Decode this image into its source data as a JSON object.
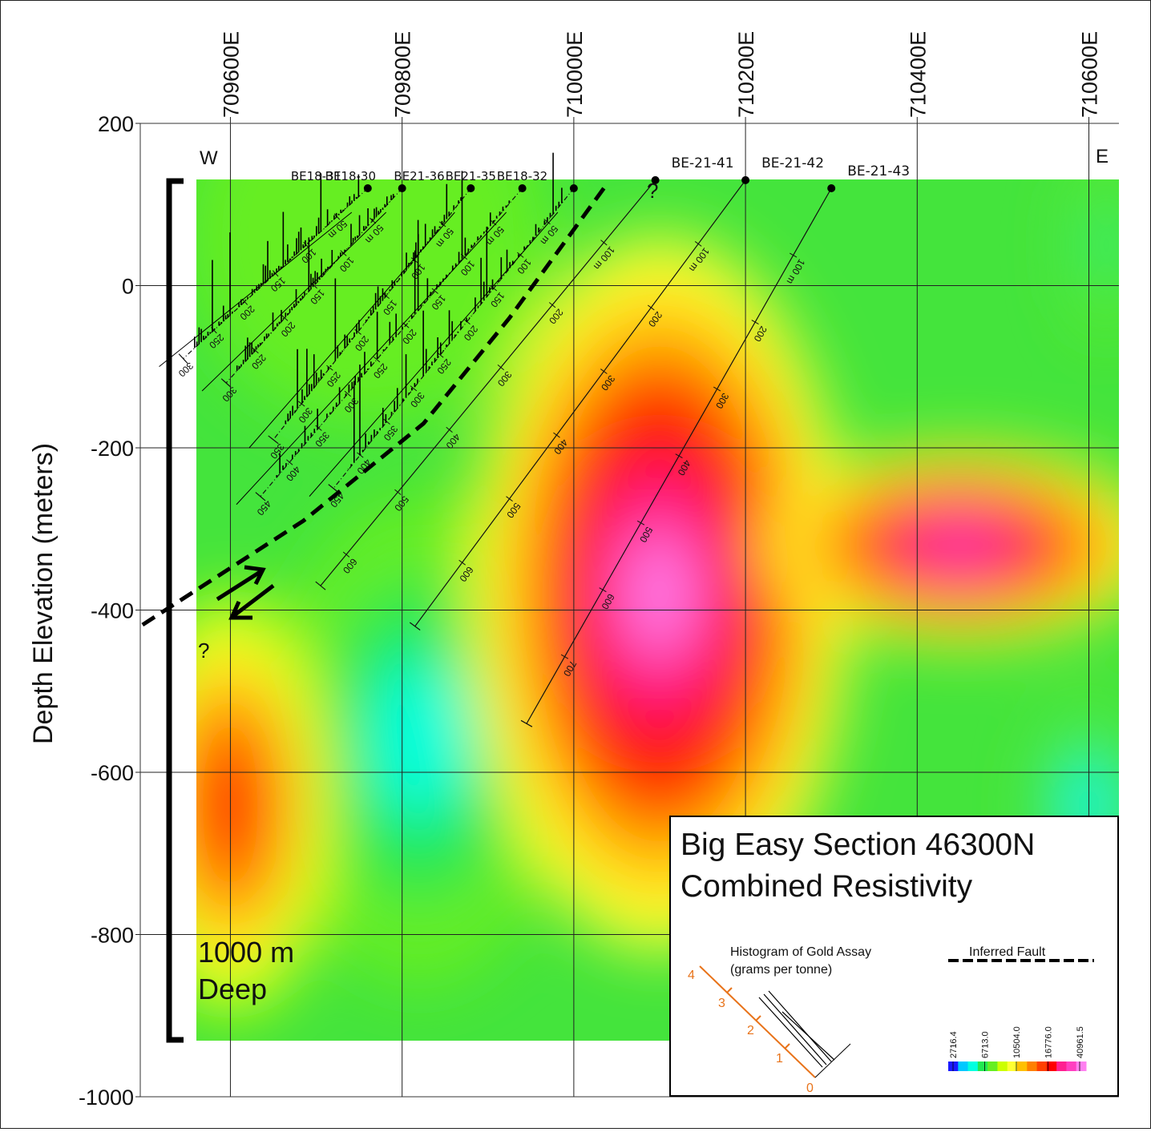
{
  "chart_data": {
    "type": "heatmap",
    "title": "Big Easy Section 46300N",
    "subtitle": "Combined Resistivity",
    "ylabel": "Depth Elevation (meters)",
    "x_ticks": [
      "709600E",
      "709800E",
      "710000E",
      "710200E",
      "710400E",
      "710600E"
    ],
    "x_tick_values": [
      709600,
      709800,
      710000,
      710200,
      710400,
      710600
    ],
    "xlim": [
      709495,
      710635
    ],
    "y_ticks": [
      "200",
      "0",
      "-200",
      "-400",
      "-600",
      "-800",
      "-1000"
    ],
    "y_tick_values": [
      200,
      0,
      -200,
      -400,
      -600,
      -800,
      -1000
    ],
    "ylim": [
      -1000,
      200
    ],
    "grid": true,
    "side_labels": {
      "west": "W",
      "east": "E"
    },
    "scale_bar": {
      "line1": "1000 m",
      "line2": "Deep"
    },
    "question_marks": [
      "?",
      "?"
    ],
    "colorbar": {
      "labels": [
        "2716.4",
        "6713.0",
        "10504.0",
        "16776.0",
        "40961.5"
      ],
      "colors": [
        "#1a1aff",
        "#00c8ff",
        "#00ffe0",
        "#22e850",
        "#66ee22",
        "#ccff00",
        "#ffff33",
        "#ffc000",
        "#ff8000",
        "#ff4000",
        "#ff0000",
        "#ff2090",
        "#ff40c0",
        "#ff80f0"
      ]
    },
    "resistivity_bodies": [
      {
        "x": 709760,
        "y": 60,
        "rx": 210,
        "ry": 230,
        "level": 0.3
      },
      {
        "x": 709820,
        "y": -560,
        "rx": 170,
        "ry": 300,
        "level": 0.12
      },
      {
        "x": 709600,
        "y": -640,
        "rx": 120,
        "ry": 260,
        "level": 0.78
      },
      {
        "x": 710100,
        "y": -380,
        "rx": 220,
        "ry": 440,
        "level": 0.97
      },
      {
        "x": 710450,
        "y": -320,
        "rx": 230,
        "ry": 120,
        "level": 0.95
      },
      {
        "x": 710600,
        "y": -640,
        "rx": 60,
        "ry": 120,
        "level": 0.1
      },
      {
        "x": 710620,
        "y": 50,
        "rx": 40,
        "ry": 110,
        "level": 0.18
      }
    ],
    "drill_holes": [
      {
        "name": "BE18-31",
        "collar": [
          709760,
          120
        ],
        "end": [
          709545,
          -90
        ],
        "end_depth": 300,
        "depth_labels": [
          "50 m",
          "100",
          "150",
          "200",
          "250",
          "300"
        ]
      },
      {
        "name": "BE18-30",
        "collar": [
          709800,
          120
        ],
        "end": [
          709595,
          -120
        ],
        "end_depth": 300,
        "depth_labels": [
          "50 m",
          "100",
          "150",
          "200",
          "250",
          "300"
        ]
      },
      {
        "name": "BE21-36",
        "collar": [
          709880,
          120
        ],
        "end": [
          709650,
          -190
        ],
        "end_depth": 350,
        "depth_labels": [
          "50 m",
          "100",
          "150",
          "200",
          "250",
          "300",
          "350"
        ]
      },
      {
        "name": "BE21-35",
        "collar": [
          709940,
          120
        ],
        "end": [
          709635,
          -260
        ],
        "end_depth": 450,
        "depth_labels": [
          "50 m",
          "100",
          "150",
          "200",
          "250",
          "300",
          "350",
          "400",
          "450"
        ]
      },
      {
        "name": "BE18-32",
        "collar": [
          710000,
          120
        ],
        "end": [
          709720,
          -250
        ],
        "end_depth": 450,
        "depth_labels": [
          "50 m",
          "100",
          "150",
          "200",
          "250",
          "300",
          "350",
          "400",
          "450"
        ]
      },
      {
        "name": "BE-21-41",
        "collar": [
          710095,
          130
        ],
        "end": [
          709705,
          -370
        ],
        "end_depth": 650,
        "depth_labels": [
          "100 m",
          "200",
          "300",
          "400",
          "500",
          "600"
        ]
      },
      {
        "name": "BE-21-42",
        "collar": [
          710200,
          130
        ],
        "end": [
          709815,
          -420
        ],
        "end_depth": 700,
        "depth_labels": [
          "100 m",
          "200",
          "300",
          "400",
          "500",
          "600"
        ]
      },
      {
        "name": "BE-21-43",
        "collar": [
          710300,
          120
        ],
        "end": [
          709945,
          -540
        ],
        "end_depth": 800,
        "depth_labels": [
          "100 m",
          "200",
          "300",
          "400",
          "500",
          "600",
          "700"
        ]
      }
    ],
    "inferred_fault": [
      [
        710035,
        120
      ],
      [
        709925,
        -40
      ],
      [
        709825,
        -170
      ],
      [
        709685,
        -290
      ],
      [
        709495,
        -420
      ]
    ],
    "legend": {
      "histogram_title_1": "Histogram of Gold Assay",
      "histogram_title_2": "(grams per tonne)",
      "histogram_scale": [
        "0",
        "1",
        "2",
        "3",
        "4"
      ],
      "fault_label": "Inferred Fault"
    }
  }
}
